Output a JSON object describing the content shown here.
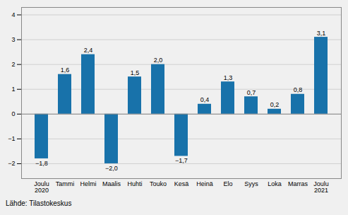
{
  "chart_data": {
    "type": "bar",
    "categories": [
      "Joulu\n2020",
      "Tammi",
      "Helmi",
      "Maalis",
      "Huhti",
      "Touko",
      "Kesä",
      "Heinä",
      "Elo",
      "Syys",
      "Loka",
      "Marras",
      "Joulu\n2021"
    ],
    "values": [
      -1.8,
      1.6,
      2.4,
      -2.0,
      1.5,
      2.0,
      -1.7,
      0.4,
      1.3,
      0.7,
      0.2,
      0.8,
      3.1
    ],
    "value_labels": [
      "−1,8",
      "1,6",
      "2,4",
      "−2,0",
      "1,5",
      "2,0",
      "−1,7",
      "0,4",
      "1,3",
      "0,7",
      "0,2",
      "0,8",
      "3,1"
    ],
    "color": "#1872aa",
    "ylim": [
      -2.6,
      4.3
    ],
    "yticks": [
      {
        "value": -2,
        "label": "−2"
      },
      {
        "value": -1,
        "label": "−1"
      },
      0,
      1,
      2,
      3,
      4
    ],
    "grid": true,
    "data_labels": true,
    "source": "Lähde: Tilastokeskus"
  }
}
